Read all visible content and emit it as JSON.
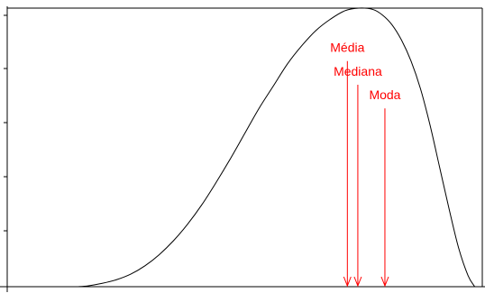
{
  "chart_data": {
    "type": "line",
    "title": "",
    "xlabel": "",
    "ylabel": "",
    "xlim": [
      0,
      1
    ],
    "ylim": [
      0,
      1
    ],
    "grid": false,
    "legend": "none",
    "colors": {
      "curve": "#000000",
      "axis": "#000000",
      "annotation": "#ff0000"
    },
    "series": [
      {
        "x": [
          0.148,
          0.17,
          0.2,
          0.23,
          0.26,
          0.29,
          0.32,
          0.35,
          0.38,
          0.41,
          0.44,
          0.47,
          0.5,
          0.53,
          0.56,
          0.59,
          0.62,
          0.65,
          0.68,
          0.71,
          0.74,
          0.77,
          0.79,
          0.81,
          0.83,
          0.85,
          0.87,
          0.89,
          0.91,
          0.93,
          0.95,
          0.97,
          0.984
        ],
        "y": [
          0.0,
          0.003,
          0.012,
          0.025,
          0.045,
          0.075,
          0.115,
          0.165,
          0.225,
          0.295,
          0.375,
          0.46,
          0.55,
          0.64,
          0.72,
          0.8,
          0.865,
          0.92,
          0.96,
          0.99,
          1.0,
          0.995,
          0.975,
          0.94,
          0.885,
          0.81,
          0.71,
          0.58,
          0.43,
          0.28,
          0.14,
          0.04,
          0.0
        ]
      }
    ],
    "annotations": [
      {
        "label": "Média",
        "x": 0.716,
        "y": 0.81
      },
      {
        "label": "Mediana",
        "x": 0.738,
        "y": 0.725
      },
      {
        "label": "Moda",
        "x": 0.795,
        "y": 0.64
      }
    ]
  }
}
